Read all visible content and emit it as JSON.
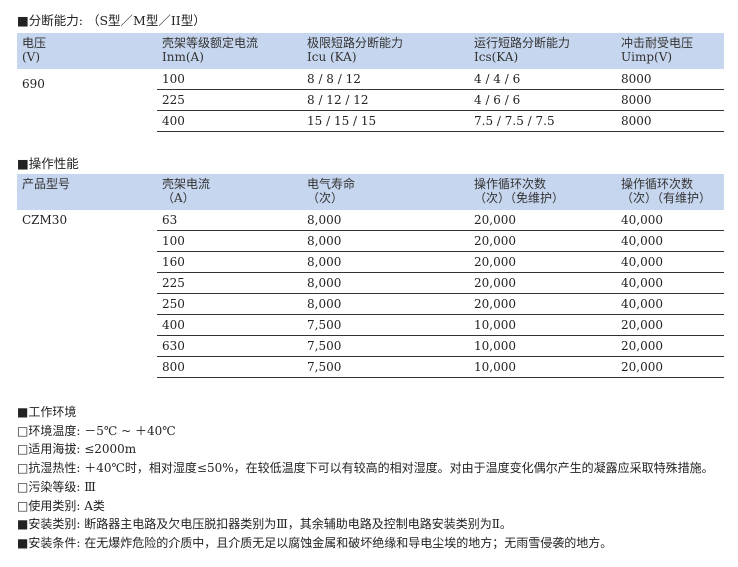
{
  "breaking": {
    "title": "■分断能力: （S型／M型／II型）",
    "headers": [
      [
        "电压",
        "(V)"
      ],
      [
        "壳架等级额定电流",
        "Inm(A)"
      ],
      [
        "极限短路分断能力",
        "Icu (KA)"
      ],
      [
        "运行短路分断能力",
        "Ics(KA)"
      ],
      [
        "冲击耐受电压",
        "Uimp(V)"
      ]
    ],
    "voltage": "690",
    "rows": [
      [
        "100",
        "8 / 8 / 12",
        "4 / 4 / 6",
        "8000"
      ],
      [
        "225",
        "8 / 12 / 12",
        "4 / 6 / 6",
        "8000"
      ],
      [
        "400",
        "15 / 15 / 15",
        "7.5 / 7.5 / 7.5",
        "8000"
      ]
    ]
  },
  "operation": {
    "title": "■操作性能",
    "headers": [
      [
        "产品型号",
        ""
      ],
      [
        "壳架电流",
        "（A）"
      ],
      [
        "电气寿命",
        "（次）"
      ],
      [
        "操作循环次数",
        "（次）（免维护）"
      ],
      [
        "操作循环次数",
        "（次）（有维护）"
      ]
    ],
    "model": "CZM30",
    "rows": [
      [
        "63",
        "8,000",
        "20,000",
        "40,000"
      ],
      [
        "100",
        "8,000",
        "20,000",
        "40,000"
      ],
      [
        "160",
        "8,000",
        "20,000",
        "40,000"
      ],
      [
        "225",
        "8,000",
        "20,000",
        "40,000"
      ],
      [
        "250",
        "8,000",
        "20,000",
        "40,000"
      ],
      [
        "400",
        "7,500",
        "10,000",
        "20,000"
      ],
      [
        "630",
        "7,500",
        "10,000",
        "20,000"
      ],
      [
        "800",
        "7,500",
        "10,000",
        "20,000"
      ]
    ]
  },
  "environment": {
    "lines": [
      "■工作环境",
      "□环境温度: －5℃ ~ ＋40℃",
      "□适用海拔: ≤2000m",
      "□抗湿热性: ＋40℃时，相对湿度≤50%，在较低温度下可以有较高的相对湿度。对由于温度变化偶尔产生的凝露应采取特殊措施。",
      "□污染等级: Ⅲ",
      "□使用类别: A类",
      "■安装类别: 断路器主电路及欠电压脱扣器类别为Ⅲ，其余辅助电路及控制电路安装类别为Ⅱ。",
      "■安装条件: 在无爆炸危险的介质中，且介质无足以腐蚀金属和破坏绝缘和导电尘埃的地方；无雨雪侵袭的地方。"
    ]
  },
  "colors": {
    "header_bg": "#c6d6ee"
  }
}
